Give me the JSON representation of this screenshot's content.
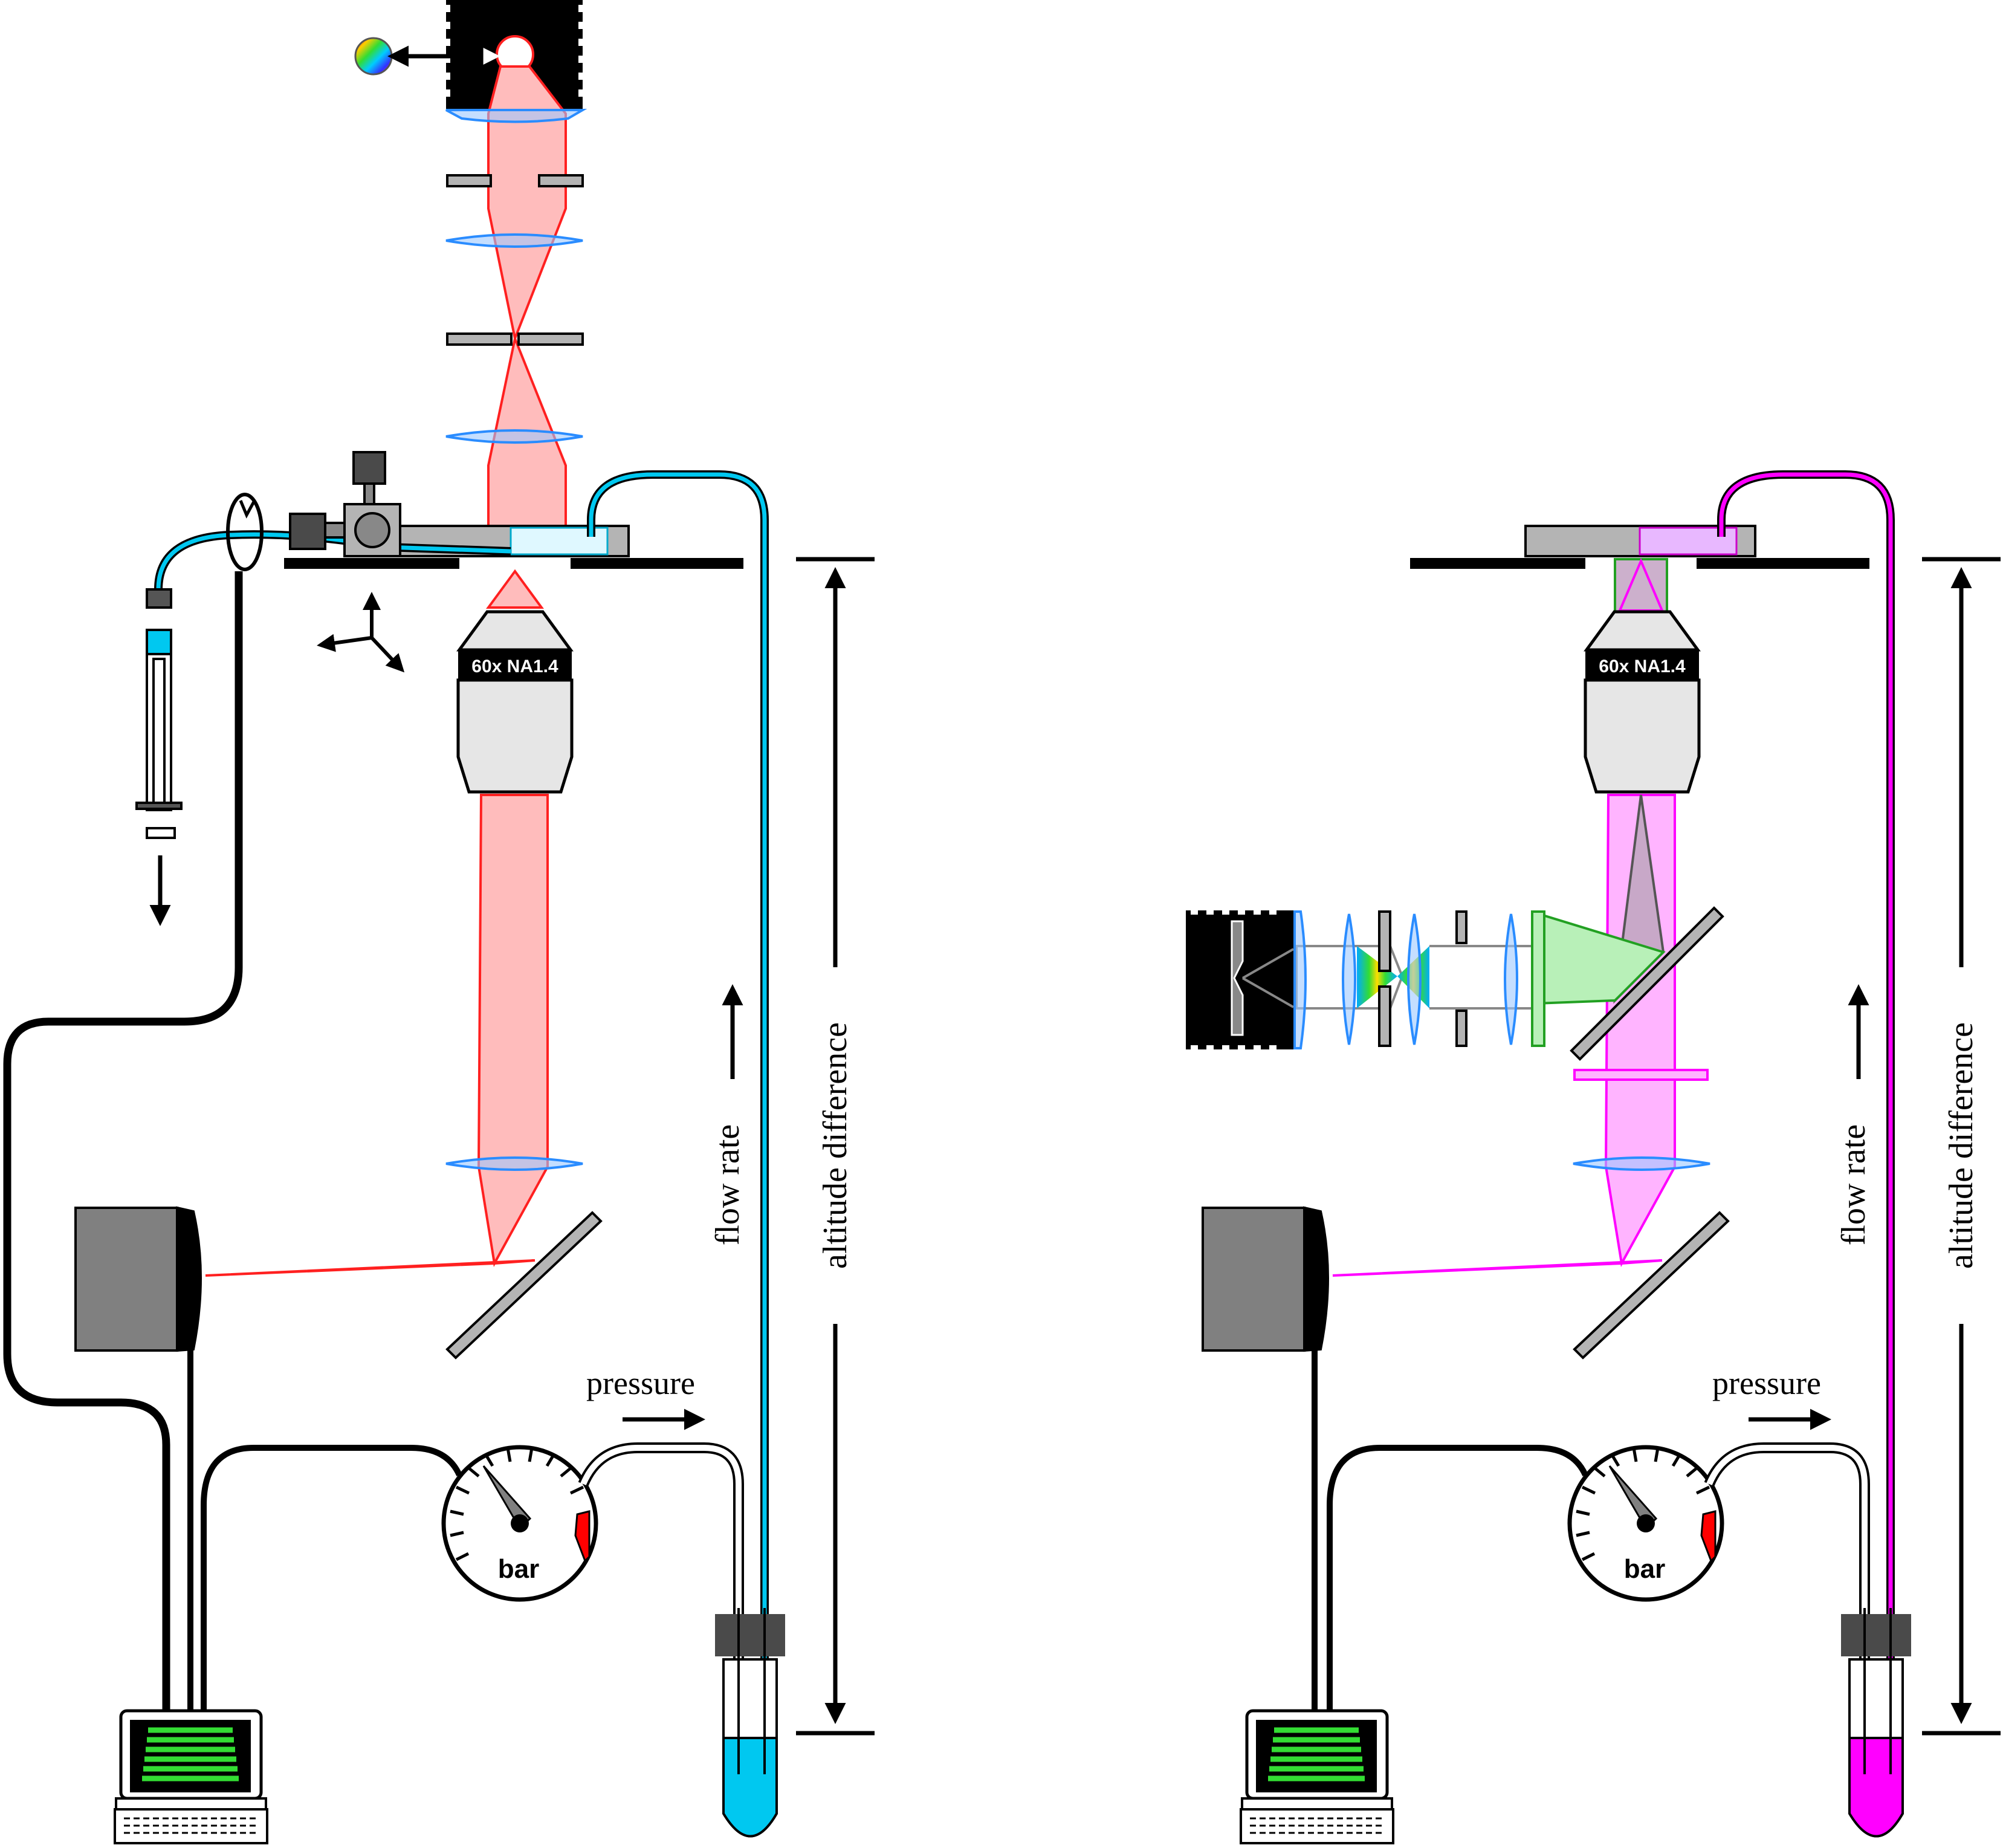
{
  "colors": {
    "left_fluid": "#00c8f0",
    "left_beam": "#ff2020",
    "left_beam_fill": "#ffbcbc",
    "right_fluid": "#ff00ff",
    "right_beam_fill": "#ffb4ff",
    "right_green": "#22a022",
    "lens": "#2a8cff",
    "gray_part": "#b4b4b4",
    "box_gray": "#808080",
    "screen_green": "#33dd33",
    "gauge_red": "#ff0000"
  },
  "left": {
    "objective_label": "60x NA1.4",
    "flow_label": "flow rate",
    "altitude_label": "altitude difference",
    "pressure_label": "pressure",
    "gauge_unit": "bar"
  },
  "right": {
    "objective_label": "60x NA1.4",
    "flow_label": "flow rate",
    "altitude_label": "altitude difference",
    "pressure_label": "pressure",
    "gauge_unit": "bar"
  }
}
